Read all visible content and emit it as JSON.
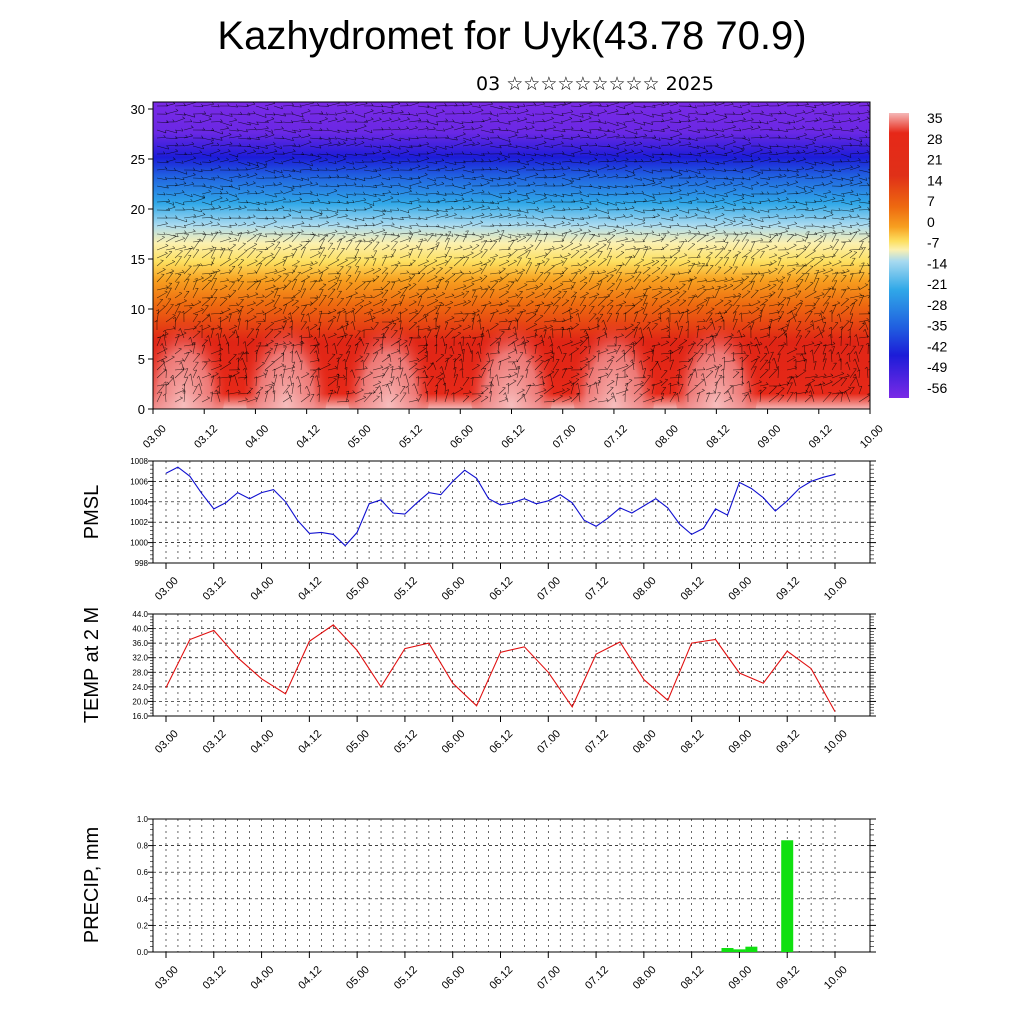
{
  "title": "Kazhydromet for Uyk(43.78 70.9)",
  "subtitle": "03 ☆☆☆☆☆☆☆☆☆ 2025",
  "chart_data": [
    {
      "type": "heatmap",
      "x_tick_labels": [
        "03.00",
        "03.12",
        "04.00",
        "04.12",
        "05.00",
        "05.12",
        "06.00",
        "06.12",
        "07.00",
        "07.12",
        "08.00",
        "08.12",
        "09.00",
        "09.12",
        "10.00"
      ],
      "y_tick_labels": [
        "0",
        "5",
        "10",
        "15",
        "20",
        "25",
        "30"
      ],
      "ylim": [
        0,
        30.7
      ],
      "colorbar_labels": [
        "35",
        "28",
        "21",
        "14",
        "7",
        "0",
        "-7",
        "-14",
        "-21",
        "-28",
        "-35",
        "-42",
        "-49",
        "-56"
      ],
      "colormap_stops": [
        "#f5b8b8",
        "#e62818",
        "#ee6a10",
        "#f7a020",
        "#fde060",
        "#fbf0b0",
        "#a8daf0",
        "#30a8e8",
        "#2060e0",
        "#1c1cd8",
        "#7a2ae6"
      ],
      "wind_barbs": "wind vectors drawn over the field"
    },
    {
      "type": "line",
      "ylabel": "PMSL",
      "color": "#1010d0",
      "x_tick_labels": [
        "03.00",
        "03.12",
        "04.00",
        "04.12",
        "05.00",
        "05.12",
        "06.00",
        "06.12",
        "07.00",
        "07.12",
        "08.00",
        "08.12",
        "09.00",
        "09.12",
        "10.00"
      ],
      "y_tick_labels": [
        "998",
        "1000",
        "1002",
        "1004",
        "1006",
        "1008"
      ],
      "ylim": [
        998,
        1008
      ],
      "x": [
        0,
        1,
        2,
        3,
        4,
        5,
        6,
        7,
        8,
        9,
        10,
        11,
        12,
        13,
        14,
        15,
        16,
        17,
        18,
        19,
        20,
        21,
        22,
        23,
        24,
        25,
        26,
        27,
        28,
        29,
        30,
        31,
        32,
        33,
        34,
        35,
        36,
        37,
        38,
        39,
        40,
        41,
        42,
        43,
        44,
        45,
        46,
        47,
        48,
        49,
        50,
        51,
        52,
        53,
        54,
        55,
        56
      ],
      "values": [
        1006.8,
        1007.4,
        1006.5,
        1004.8,
        1003.3,
        1003.9,
        1004.9,
        1004.3,
        1004.9,
        1005.2,
        1004.0,
        1002.2,
        1000.9,
        1001.0,
        1000.8,
        999.7,
        1001.0,
        1003.8,
        1004.2,
        1002.9,
        1002.8,
        1003.9,
        1004.9,
        1004.7,
        1006.0,
        1007.1,
        1006.3,
        1004.3,
        1003.7,
        1003.9,
        1004.3,
        1003.8,
        1004.1,
        1004.7,
        1003.9,
        1002.2,
        1001.6,
        1002.4,
        1003.4,
        1002.9,
        1003.6,
        1004.3,
        1003.4,
        1001.8,
        1000.8,
        1001.4,
        1003.3,
        1002.7,
        1005.9,
        1005.3,
        1004.4,
        1003.1,
        1004.1,
        1005.3,
        1006.0,
        1006.4,
        1006.7
      ]
    },
    {
      "type": "line",
      "ylabel": "TEMP at 2 M",
      "color": "#e01010",
      "x_tick_labels": [
        "03.00",
        "03.12",
        "04.00",
        "04.12",
        "05.00",
        "05.12",
        "06.00",
        "06.12",
        "07.00",
        "07.12",
        "08.00",
        "08.12",
        "09.00",
        "09.12",
        "10.00"
      ],
      "y_tick_labels": [
        "16.0",
        "20.0",
        "24.0",
        "28.0",
        "32.0",
        "36.0",
        "40.0",
        "44.0"
      ],
      "ylim": [
        16,
        44
      ],
      "x": [
        0,
        2,
        4,
        6,
        8,
        10,
        12,
        14,
        16,
        18,
        20,
        22,
        24,
        26,
        28,
        30,
        32,
        34,
        36,
        38,
        40,
        42,
        44,
        46,
        48,
        50,
        52,
        54,
        56
      ],
      "values": [
        23.8,
        37.0,
        39.5,
        32.0,
        26.2,
        22.1,
        36.5,
        41.0,
        34.0,
        24.0,
        34.5,
        36.0,
        25.0,
        18.8,
        33.5,
        35.0,
        28.0,
        18.5,
        33.0,
        36.3,
        26.0,
        20.3,
        36.0,
        37.0,
        27.8,
        25.0,
        33.8,
        29.0,
        17.2
      ]
    },
    {
      "type": "bar",
      "ylabel": "PRECIP, mm",
      "color": "#10e010",
      "x_tick_labels": [
        "03.00",
        "03.12",
        "04.00",
        "04.12",
        "05.00",
        "05.12",
        "06.00",
        "06.12",
        "07.00",
        "07.12",
        "08.00",
        "08.12",
        "09.00",
        "09.12",
        "10.00"
      ],
      "y_tick_labels": [
        "0.0",
        "0.2",
        "0.4",
        "0.6",
        "0.8",
        "1.0"
      ],
      "ylim": [
        0,
        1.0
      ],
      "x": [
        47,
        48,
        49,
        52
      ],
      "values": [
        0.03,
        0.02,
        0.04,
        0.84
      ]
    }
  ]
}
